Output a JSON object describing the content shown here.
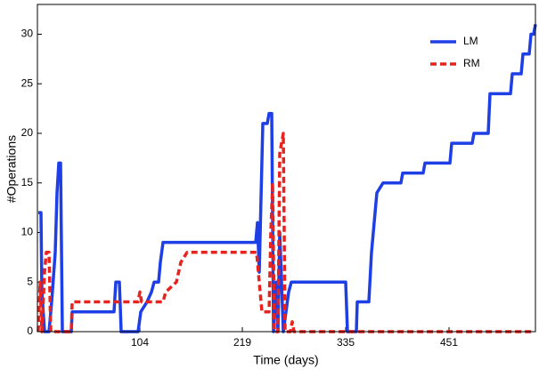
{
  "chart_data": {
    "type": "line",
    "x_label": "Time (days)",
    "y_label": "#Operations",
    "xlim": [
      -11,
      548
    ],
    "ylim": [
      0,
      33
    ],
    "xticks": [
      104,
      219,
      335,
      451
    ],
    "yticks": [
      0,
      5,
      10,
      15,
      20,
      25,
      30
    ],
    "legend": "upper right",
    "series": [
      {
        "name": "LM",
        "color": "#1f3fe6",
        "dash": false,
        "x": [
          -10,
          -7,
          -6,
          -3,
          2,
          5,
          9,
          11,
          13,
          15,
          17,
          27,
          28,
          75,
          77,
          81,
          83,
          102,
          105,
          112,
          117,
          120,
          125,
          127,
          130,
          234,
          236,
          238,
          242,
          247,
          249,
          252,
          254,
          257,
          259,
          261,
          265,
          271,
          274,
          335,
          337,
          347,
          348,
          361,
          364,
          370,
          377,
          397,
          399,
          422,
          424,
          452,
          454,
          477,
          479,
          495,
          497,
          520,
          522,
          532,
          534,
          541,
          543,
          546,
          548
        ],
        "values": [
          12,
          12,
          4,
          0,
          0,
          3,
          8,
          14,
          17,
          17,
          0,
          0,
          2,
          2,
          5,
          5,
          0,
          0,
          2,
          3,
          4,
          5,
          5,
          7,
          9,
          9,
          11,
          6,
          21,
          21,
          22,
          22,
          0,
          5,
          0,
          10,
          0,
          4,
          5,
          5,
          0,
          0,
          3,
          3,
          8,
          14,
          15,
          15,
          16,
          16,
          17,
          17,
          19,
          19,
          20,
          20,
          24,
          24,
          26,
          26,
          28,
          28,
          30,
          30,
          31
        ]
      },
      {
        "name": "RM",
        "color": "#e8231f",
        "dash": true,
        "x": [
          -10,
          -8,
          -6,
          -3,
          -1,
          2,
          4,
          27,
          28,
          102,
          104,
          106,
          130,
          133,
          145,
          150,
          157,
          235,
          237,
          241,
          249,
          251,
          253,
          255,
          259,
          261,
          265,
          267,
          273,
          275,
          277,
          547
        ],
        "values": [
          0,
          5,
          0,
          6,
          8,
          8,
          0,
          0,
          3,
          3,
          4,
          3,
          3,
          4,
          5,
          7,
          8,
          8,
          6,
          2,
          2,
          10,
          15,
          0,
          0,
          18,
          20,
          0,
          0,
          1,
          0,
          0
        ]
      }
    ]
  }
}
